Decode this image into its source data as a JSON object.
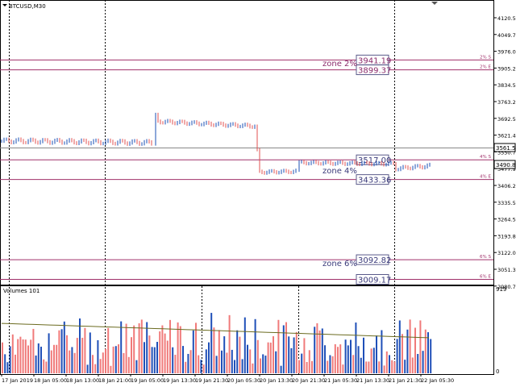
{
  "header": {
    "symbol_label": "BTCUSD,M30"
  },
  "price_axis": {
    "ticks": [
      "4120.50",
      "4049.75",
      "3976.00",
      "3905.25",
      "3834.50",
      "3763.25",
      "3692.50",
      "3621.45",
      "3550.70",
      "3477.95",
      "3406.25",
      "3335.50",
      "3264.55",
      "3193.80",
      "3122.05",
      "3051.30",
      "2980.75"
    ],
    "bid_label": "3561.51",
    "current_label": "3490.80"
  },
  "zones": [
    {
      "name": "zone 2%",
      "start_value": "3941.19",
      "end_value": "3899.37",
      "start_tag": "2% S",
      "end_tag": "2% E",
      "color": "#a0306a"
    },
    {
      "name": "zone 4%",
      "start_value": "3517.00",
      "end_value": "3433.36",
      "start_tag": "4% S",
      "end_tag": "4% E",
      "color": "#a0306a"
    },
    {
      "name": "zone 6%",
      "start_value": "3092.82",
      "end_value": "3009.17",
      "start_tag": "6% S",
      "end_tag": "6% E",
      "color": "#a0306a"
    }
  ],
  "volume_panel": {
    "title": "Volumes 101",
    "axis_max": "919",
    "axis_min": "0"
  },
  "time_axis": {
    "labels": [
      "17 Jan 2019",
      "18 Jan 05:00",
      "18 Jan 13:00",
      "18 Jan 21:00",
      "19 Jan 05:00",
      "19 Jan 13:30",
      "19 Jan 21:30",
      "20 Jan 05:30",
      "20 Jan 13:30",
      "20 Jan 21:30",
      "21 Jan 05:30",
      "21 Jan 13:30",
      "21 Jan 21:30",
      "22 Jan 05:30"
    ]
  },
  "colors": {
    "up": "#1a4fb4",
    "down": "#e05050",
    "vol_up": "#1f4fb8",
    "vol_down": "#f07a7a",
    "ma": "#6b6b20",
    "grid": "#000000"
  }
}
